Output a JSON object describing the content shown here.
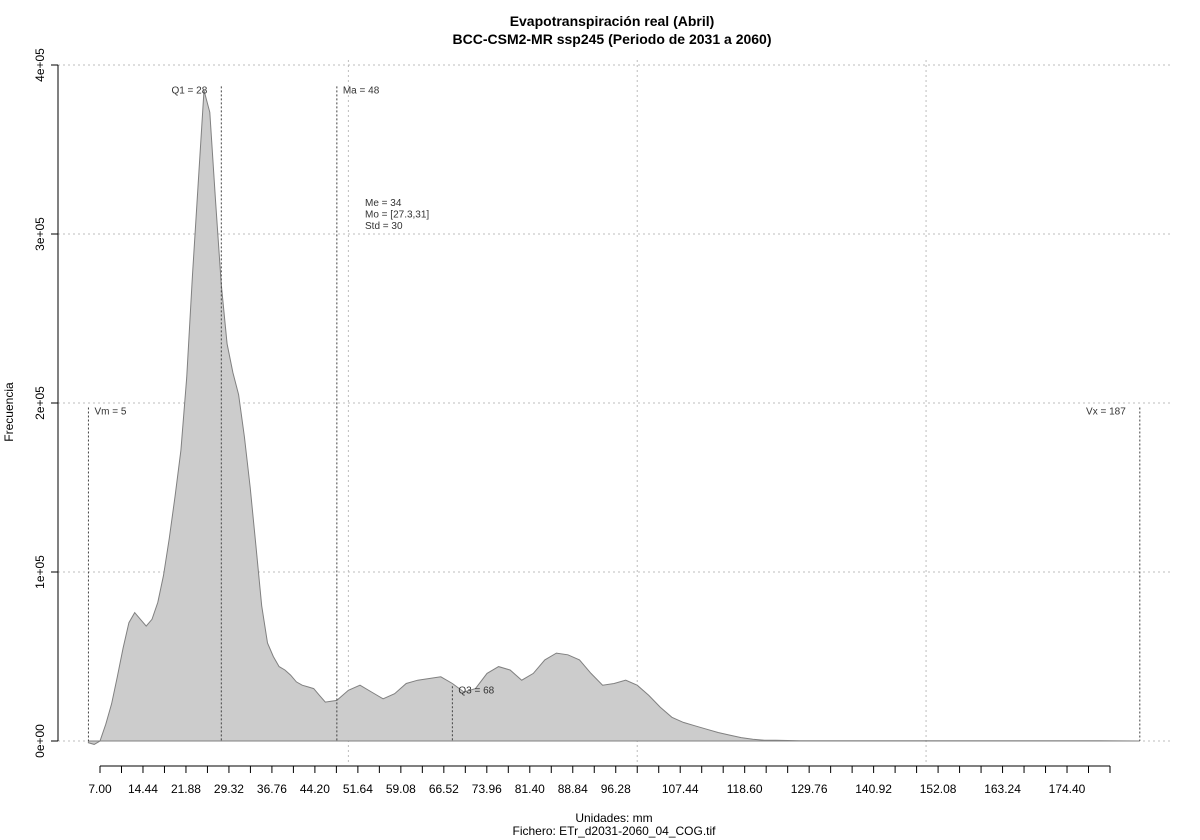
{
  "chart_data": {
    "type": "area",
    "title": "Evapotranspiración real (Abril)",
    "subtitle": "BCC-CSM2-MR ssp245 (Periodo de 2031 a 2060)",
    "xlabel": "Unidades: mm",
    "ylabel": "Frecuencia",
    "footer": "Fichero: ETr_d2031-2060_04_COG.tif",
    "xlim": [
      4.1,
      187
    ],
    "ylim": [
      -20000,
      400000
    ],
    "x_ticks": [
      7.0,
      10.72,
      14.44,
      18.16,
      21.88,
      25.6,
      29.32,
      33.04,
      36.76,
      40.48,
      44.2,
      47.92,
      51.64,
      55.36,
      59.08,
      62.8,
      66.52,
      70.24,
      73.96,
      77.68,
      81.4,
      85.12,
      88.84,
      92.56,
      96.28,
      100.0,
      103.72,
      107.44,
      111.16,
      114.88,
      118.6,
      122.32,
      126.04,
      129.76,
      133.48,
      137.2,
      140.92,
      144.64,
      148.36,
      152.08,
      155.8,
      159.52,
      163.24,
      166.96,
      170.68,
      174.4,
      178.12,
      181.84
    ],
    "x_tick_labels": [
      "7.00",
      "14.44",
      "21.88",
      "29.32",
      "36.76",
      "44.20",
      "51.64",
      "59.08",
      "66.52",
      "73.96",
      "81.40",
      "88.84",
      "96.28",
      "107.44",
      "118.60",
      "129.76",
      "140.92",
      "152.08",
      "163.24",
      "174.40"
    ],
    "x_tick_label_values": [
      7.0,
      14.44,
      21.88,
      29.32,
      36.76,
      44.2,
      51.64,
      59.08,
      66.52,
      73.96,
      81.4,
      88.84,
      96.28,
      107.44,
      118.6,
      129.76,
      140.92,
      152.08,
      163.24,
      174.4
    ],
    "y_ticks": [
      0,
      100000,
      200000,
      300000,
      400000
    ],
    "y_tick_labels": [
      "0e+00",
      "1e+05",
      "2e+05",
      "3e+05",
      "4e+05"
    ],
    "grid": true,
    "fill_color": "#cccccc",
    "line_color": "#808080",
    "series": [
      {
        "x": [
          5,
          6,
          7,
          8,
          9,
          10,
          11,
          12,
          13,
          14,
          15,
          16,
          17,
          18,
          19,
          20,
          21,
          22,
          23,
          24,
          25,
          26,
          27,
          28,
          29,
          30,
          31,
          32,
          33,
          34,
          35,
          36,
          37,
          38,
          39,
          40,
          41,
          42,
          43,
          44,
          45,
          46,
          48,
          50,
          52,
          54,
          56,
          58,
          60,
          62,
          64,
          66,
          68,
          70,
          72,
          74,
          76,
          78,
          80,
          82,
          84,
          86,
          88,
          90,
          92,
          94,
          96,
          98,
          100,
          102,
          104,
          106,
          108,
          110,
          112,
          114,
          116,
          118,
          120,
          122,
          124,
          126,
          128,
          130,
          132,
          134,
          140,
          150,
          160,
          170,
          180,
          187
        ],
        "y": [
          -1000,
          -2000,
          0,
          10000,
          22000,
          38000,
          55000,
          70000,
          76000,
          72000,
          68000,
          72000,
          82000,
          98000,
          120000,
          145000,
          172000,
          215000,
          275000,
          330000,
          385000,
          372000,
          320000,
          270000,
          235000,
          218000,
          205000,
          180000,
          150000,
          115000,
          80000,
          58000,
          50000,
          44000,
          42000,
          39000,
          35000,
          33000,
          32000,
          31000,
          27000,
          23000,
          24000,
          30000,
          33000,
          29000,
          25000,
          28000,
          34000,
          36000,
          37000,
          38000,
          34000,
          29000,
          31000,
          40000,
          44000,
          42000,
          36000,
          40000,
          48000,
          52000,
          51000,
          48000,
          40000,
          33000,
          34000,
          36000,
          33000,
          27000,
          20000,
          14000,
          11000,
          9000,
          7000,
          5000,
          3500,
          2000,
          1000,
          500,
          400,
          300,
          200,
          150,
          100,
          100,
          100,
          100,
          100,
          100,
          100,
          0
        ]
      }
    ],
    "vlines": [
      {
        "x": 5,
        "label": "Vm = 5",
        "label_y": 195000,
        "label_side": "right"
      },
      {
        "x": 28,
        "label": "Q1 = 28",
        "label_y": 385000,
        "label_side": "left"
      },
      {
        "x": 48,
        "label": "Ma = 48",
        "label_y": 385000,
        "label_side": "right"
      },
      {
        "x": 68,
        "label": "Q3 = 68",
        "label_y": 30000,
        "label_side": "right"
      },
      {
        "x": 187,
        "label": "Vx = 187",
        "label_y": 195000,
        "label_side": "left"
      }
    ],
    "annotations": [
      "Me = 34",
      "Mo = [27.3,31]",
      "Std = 30"
    ]
  }
}
